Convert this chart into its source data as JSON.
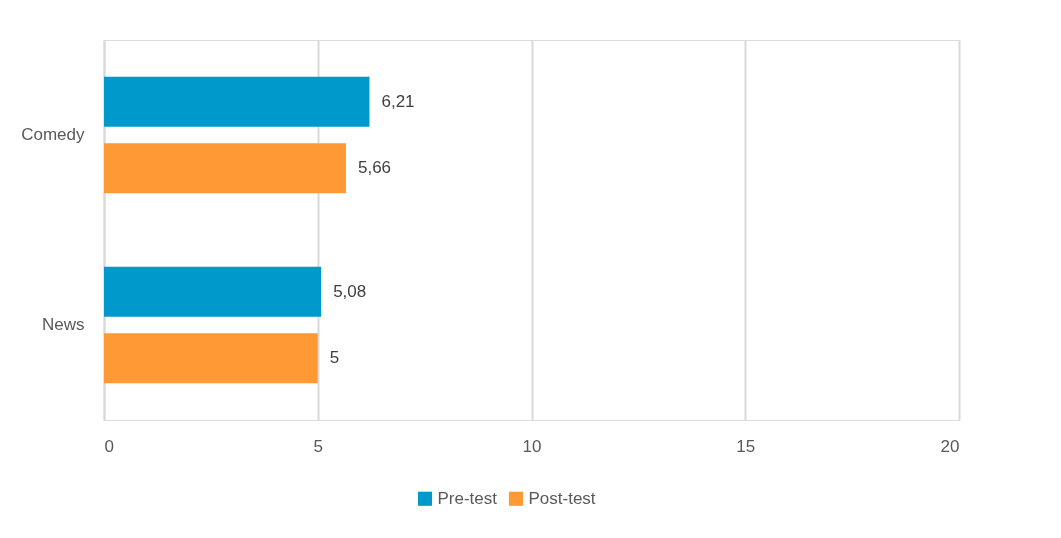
{
  "chart_data": {
    "type": "bar",
    "orientation": "horizontal",
    "categories": [
      "Comedy",
      "News"
    ],
    "series": [
      {
        "name": "Pre-test",
        "color": "#0099cc",
        "values": [
          6.21,
          5.08
        ],
        "value_labels": [
          "6,21",
          "5,08"
        ]
      },
      {
        "name": "Post-test",
        "color": "#ff9933",
        "values": [
          5.66,
          5
        ],
        "value_labels": [
          "5,66",
          "5"
        ]
      }
    ],
    "xlim": [
      0,
      20
    ],
    "xticks": [
      0,
      5,
      10,
      15,
      20
    ],
    "grid": "x",
    "legend": "bottom"
  }
}
